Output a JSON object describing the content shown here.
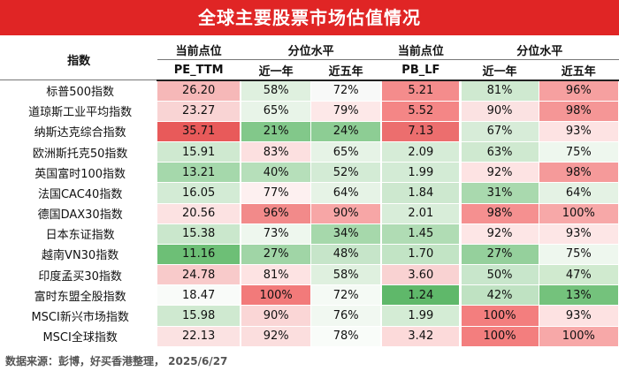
{
  "title": "全球主要股票市场估值情况",
  "header": {
    "index": "指数",
    "pe_group": "当前点位",
    "pe_metric": "PE_TTM",
    "pe_pct_group": "分位水平",
    "pb_group": "当前点位",
    "pb_metric": "PB_LF",
    "pb_pct_group": "分位水平",
    "one_year": "近一年",
    "five_year": "近五年"
  },
  "rows": [
    {
      "name": "标普500指数",
      "pe": "26.20",
      "pe1": "58%",
      "pe5": "72%",
      "pb": "5.21",
      "pb1": "81%",
      "pb5": "96%",
      "c": [
        "#f6b8b8",
        "#dff0df",
        "#f8f9f8",
        "#f48c8c",
        "#cfe9d0",
        "#f6a0a0"
      ]
    },
    {
      "name": "道琼斯工业平均指数",
      "pe": "23.27",
      "pe1": "65%",
      "pe5": "79%",
      "pb": "5.52",
      "pb1": "90%",
      "pb5": "98%",
      "c": [
        "#f9d4d4",
        "#e8f4e8",
        "#fde8e8",
        "#f48686",
        "#fbe2e2",
        "#f59696"
      ]
    },
    {
      "name": "纳斯达克综合指数",
      "pe": "35.71",
      "pe1": "21%",
      "pe5": "24%",
      "pb": "7.13",
      "pb1": "67%",
      "pb5": "93%",
      "c": [
        "#e85a5a",
        "#82c88a",
        "#8dcd94",
        "#ec6e6e",
        "#d7ecd8",
        "#fde3e3"
      ]
    },
    {
      "name": "欧洲斯托克50指数",
      "pe": "15.91",
      "pe1": "83%",
      "pe5": "65%",
      "pb": "2.09",
      "pb1": "63%",
      "pb5": "75%",
      "c": [
        "#cfe9d0",
        "#fce0e0",
        "#e6f3e6",
        "#d6ecd7",
        "#cfe9d0",
        "#eef7ee"
      ]
    },
    {
      "name": "英国富时100指数",
      "pe": "13.21",
      "pe1": "40%",
      "pe5": "52%",
      "pb": "1.99",
      "pb1": "92%",
      "pb5": "98%",
      "c": [
        "#a5d8ab",
        "#b6dfba",
        "#d3ebd5",
        "#d3ebd5",
        "#fde3e3",
        "#f59a9a"
      ]
    },
    {
      "name": "法国CAC40指数",
      "pe": "16.05",
      "pe1": "77%",
      "pe5": "64%",
      "pb": "1.84",
      "pb1": "31%",
      "pb5": "64%",
      "c": [
        "#d3ebd5",
        "#fdf0f0",
        "#e6f3e6",
        "#cde8cf",
        "#a9d9ae",
        "#e4f2e4"
      ]
    },
    {
      "name": "德国DAX30指数",
      "pe": "20.56",
      "pe1": "96%",
      "pe5": "90%",
      "pb": "2.01",
      "pb1": "98%",
      "pb5": "100%",
      "c": [
        "#fce2e2",
        "#f28a8a",
        "#f7a6a6",
        "#d8edd9",
        "#f59090",
        "#f7a8a8"
      ]
    },
    {
      "name": "日本东证指数",
      "pe": "15.38",
      "pe1": "73%",
      "pe5": "34%",
      "pb": "1.45",
      "pb1": "92%",
      "pb5": "93%",
      "c": [
        "#cae7cc",
        "#eef7ee",
        "#a6d8ab",
        "#b0dcb4",
        "#fde6e6",
        "#fde6e6"
      ]
    },
    {
      "name": "越南VN30指数",
      "pe": "11.16",
      "pe1": "27%",
      "pe5": "48%",
      "pb": "1.70",
      "pb1": "27%",
      "pb5": "75%",
      "c": [
        "#6dbf76",
        "#a0d5a6",
        "#c6e5c9",
        "#c2e4c5",
        "#95d09c",
        "#eef7ee"
      ]
    },
    {
      "name": "印度孟买30指数",
      "pe": "24.78",
      "pe1": "81%",
      "pe5": "58%",
      "pb": "3.60",
      "pb1": "50%",
      "pb5": "47%",
      "c": [
        "#f8caca",
        "#fde3e3",
        "#dff0df",
        "#f9d2d2",
        "#c8e6cb",
        "#d0eacf"
      ]
    },
    {
      "name": "富时东盟全股指数",
      "pe": "18.47",
      "pe1": "100%",
      "pe5": "72%",
      "pb": "1.24",
      "pb1": "42%",
      "pb5": "13%",
      "c": [
        "#f9fbf9",
        "#f27a7a",
        "#f5faf5",
        "#5fb86a",
        "#bfe2c2",
        "#74c27c"
      ]
    },
    {
      "name": "MSCI新兴市场指数",
      "pe": "15.98",
      "pe1": "90%",
      "pe5": "76%",
      "pb": "1.99",
      "pb1": "100%",
      "pb5": "93%",
      "c": [
        "#cfe9d0",
        "#fad6d6",
        "#f1f8f1",
        "#d4ecd5",
        "#f37e7e",
        "#fde2e2"
      ]
    },
    {
      "name": "MSCI全球指数",
      "pe": "22.13",
      "pe1": "92%",
      "pe5": "78%",
      "pb": "3.42",
      "pb1": "100%",
      "pb5": "100%",
      "c": [
        "#fbe2e2",
        "#fbdede",
        "#f9fcf9",
        "#fcdada",
        "#f37e7e",
        "#f7a8a8"
      ]
    }
  ],
  "footer": "数据来源：彭博，好买香港整理， 2025/6/27"
}
